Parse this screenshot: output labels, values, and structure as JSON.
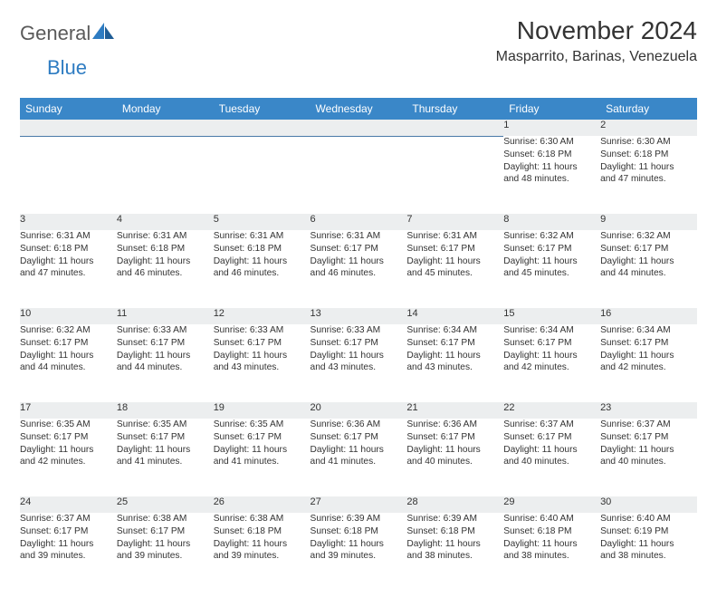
{
  "colors": {
    "header_bg": "#3a87c8",
    "header_text": "#ffffff",
    "daynum_bg": "#eceeef",
    "daynum_border": "#4a7aa8",
    "body_text": "#333333",
    "logo_gray": "#5a5a5a",
    "logo_blue": "#2e7cc2",
    "page_bg": "#ffffff"
  },
  "typography": {
    "title_fontsize": 28,
    "location_fontsize": 16,
    "header_fontsize": 12,
    "daynum_fontsize": 11,
    "cell_fontsize": 10.2,
    "logo_fontsize": 22
  },
  "logo": {
    "part1": "General",
    "part2": "Blue"
  },
  "title": "November 2024",
  "location": "Masparrito, Barinas, Venezuela",
  "day_headers": [
    "Sunday",
    "Monday",
    "Tuesday",
    "Wednesday",
    "Thursday",
    "Friday",
    "Saturday"
  ],
  "weeks": [
    [
      null,
      null,
      null,
      null,
      null,
      {
        "n": "1",
        "sr": "Sunrise: 6:30 AM",
        "ss": "Sunset: 6:18 PM",
        "dl1": "Daylight: 11 hours",
        "dl2": "and 48 minutes."
      },
      {
        "n": "2",
        "sr": "Sunrise: 6:30 AM",
        "ss": "Sunset: 6:18 PM",
        "dl1": "Daylight: 11 hours",
        "dl2": "and 47 minutes."
      }
    ],
    [
      {
        "n": "3",
        "sr": "Sunrise: 6:31 AM",
        "ss": "Sunset: 6:18 PM",
        "dl1": "Daylight: 11 hours",
        "dl2": "and 47 minutes."
      },
      {
        "n": "4",
        "sr": "Sunrise: 6:31 AM",
        "ss": "Sunset: 6:18 PM",
        "dl1": "Daylight: 11 hours",
        "dl2": "and 46 minutes."
      },
      {
        "n": "5",
        "sr": "Sunrise: 6:31 AM",
        "ss": "Sunset: 6:18 PM",
        "dl1": "Daylight: 11 hours",
        "dl2": "and 46 minutes."
      },
      {
        "n": "6",
        "sr": "Sunrise: 6:31 AM",
        "ss": "Sunset: 6:17 PM",
        "dl1": "Daylight: 11 hours",
        "dl2": "and 46 minutes."
      },
      {
        "n": "7",
        "sr": "Sunrise: 6:31 AM",
        "ss": "Sunset: 6:17 PM",
        "dl1": "Daylight: 11 hours",
        "dl2": "and 45 minutes."
      },
      {
        "n": "8",
        "sr": "Sunrise: 6:32 AM",
        "ss": "Sunset: 6:17 PM",
        "dl1": "Daylight: 11 hours",
        "dl2": "and 45 minutes."
      },
      {
        "n": "9",
        "sr": "Sunrise: 6:32 AM",
        "ss": "Sunset: 6:17 PM",
        "dl1": "Daylight: 11 hours",
        "dl2": "and 44 minutes."
      }
    ],
    [
      {
        "n": "10",
        "sr": "Sunrise: 6:32 AM",
        "ss": "Sunset: 6:17 PM",
        "dl1": "Daylight: 11 hours",
        "dl2": "and 44 minutes."
      },
      {
        "n": "11",
        "sr": "Sunrise: 6:33 AM",
        "ss": "Sunset: 6:17 PM",
        "dl1": "Daylight: 11 hours",
        "dl2": "and 44 minutes."
      },
      {
        "n": "12",
        "sr": "Sunrise: 6:33 AM",
        "ss": "Sunset: 6:17 PM",
        "dl1": "Daylight: 11 hours",
        "dl2": "and 43 minutes."
      },
      {
        "n": "13",
        "sr": "Sunrise: 6:33 AM",
        "ss": "Sunset: 6:17 PM",
        "dl1": "Daylight: 11 hours",
        "dl2": "and 43 minutes."
      },
      {
        "n": "14",
        "sr": "Sunrise: 6:34 AM",
        "ss": "Sunset: 6:17 PM",
        "dl1": "Daylight: 11 hours",
        "dl2": "and 43 minutes."
      },
      {
        "n": "15",
        "sr": "Sunrise: 6:34 AM",
        "ss": "Sunset: 6:17 PM",
        "dl1": "Daylight: 11 hours",
        "dl2": "and 42 minutes."
      },
      {
        "n": "16",
        "sr": "Sunrise: 6:34 AM",
        "ss": "Sunset: 6:17 PM",
        "dl1": "Daylight: 11 hours",
        "dl2": "and 42 minutes."
      }
    ],
    [
      {
        "n": "17",
        "sr": "Sunrise: 6:35 AM",
        "ss": "Sunset: 6:17 PM",
        "dl1": "Daylight: 11 hours",
        "dl2": "and 42 minutes."
      },
      {
        "n": "18",
        "sr": "Sunrise: 6:35 AM",
        "ss": "Sunset: 6:17 PM",
        "dl1": "Daylight: 11 hours",
        "dl2": "and 41 minutes."
      },
      {
        "n": "19",
        "sr": "Sunrise: 6:35 AM",
        "ss": "Sunset: 6:17 PM",
        "dl1": "Daylight: 11 hours",
        "dl2": "and 41 minutes."
      },
      {
        "n": "20",
        "sr": "Sunrise: 6:36 AM",
        "ss": "Sunset: 6:17 PM",
        "dl1": "Daylight: 11 hours",
        "dl2": "and 41 minutes."
      },
      {
        "n": "21",
        "sr": "Sunrise: 6:36 AM",
        "ss": "Sunset: 6:17 PM",
        "dl1": "Daylight: 11 hours",
        "dl2": "and 40 minutes."
      },
      {
        "n": "22",
        "sr": "Sunrise: 6:37 AM",
        "ss": "Sunset: 6:17 PM",
        "dl1": "Daylight: 11 hours",
        "dl2": "and 40 minutes."
      },
      {
        "n": "23",
        "sr": "Sunrise: 6:37 AM",
        "ss": "Sunset: 6:17 PM",
        "dl1": "Daylight: 11 hours",
        "dl2": "and 40 minutes."
      }
    ],
    [
      {
        "n": "24",
        "sr": "Sunrise: 6:37 AM",
        "ss": "Sunset: 6:17 PM",
        "dl1": "Daylight: 11 hours",
        "dl2": "and 39 minutes."
      },
      {
        "n": "25",
        "sr": "Sunrise: 6:38 AM",
        "ss": "Sunset: 6:17 PM",
        "dl1": "Daylight: 11 hours",
        "dl2": "and 39 minutes."
      },
      {
        "n": "26",
        "sr": "Sunrise: 6:38 AM",
        "ss": "Sunset: 6:18 PM",
        "dl1": "Daylight: 11 hours",
        "dl2": "and 39 minutes."
      },
      {
        "n": "27",
        "sr": "Sunrise: 6:39 AM",
        "ss": "Sunset: 6:18 PM",
        "dl1": "Daylight: 11 hours",
        "dl2": "and 39 minutes."
      },
      {
        "n": "28",
        "sr": "Sunrise: 6:39 AM",
        "ss": "Sunset: 6:18 PM",
        "dl1": "Daylight: 11 hours",
        "dl2": "and 38 minutes."
      },
      {
        "n": "29",
        "sr": "Sunrise: 6:40 AM",
        "ss": "Sunset: 6:18 PM",
        "dl1": "Daylight: 11 hours",
        "dl2": "and 38 minutes."
      },
      {
        "n": "30",
        "sr": "Sunrise: 6:40 AM",
        "ss": "Sunset: 6:19 PM",
        "dl1": "Daylight: 11 hours",
        "dl2": "and 38 minutes."
      }
    ]
  ]
}
